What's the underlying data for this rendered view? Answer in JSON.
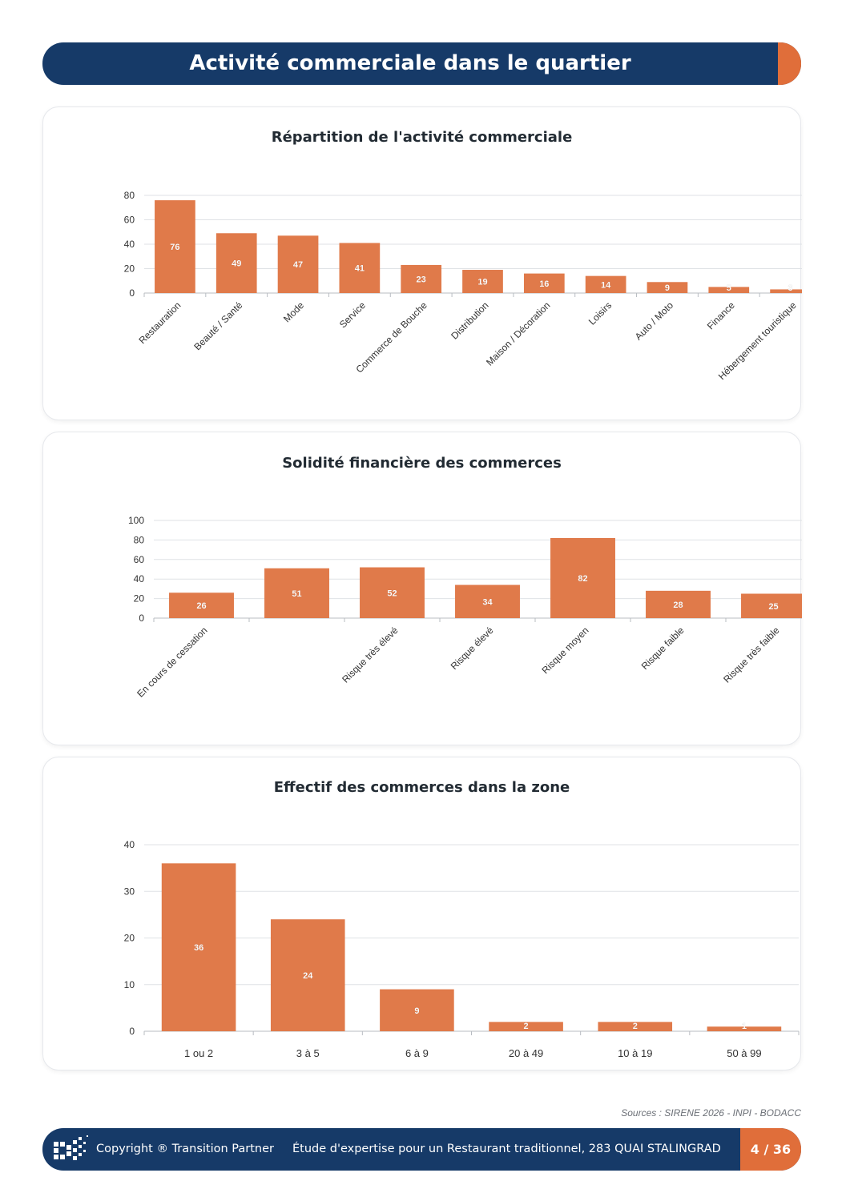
{
  "header": {
    "title": "Activité commerciale dans le quartier"
  },
  "colors": {
    "navy": "#163a68",
    "accent": "#e06e3a",
    "bar": "#e07a4a"
  },
  "chart_data": [
    {
      "type": "bar",
      "title": "Répartition de l'activité commerciale",
      "categories": [
        "Restauration",
        "Beauté / Santé",
        "Mode",
        "Service",
        "Commerce de Bouche",
        "Distribution",
        "Maison / Décoration",
        "Loisirs",
        "Auto / Moto",
        "Finance",
        "Hébergement touristique"
      ],
      "values": [
        76,
        49,
        47,
        41,
        23,
        19,
        16,
        14,
        9,
        5,
        3
      ],
      "yticks": [
        0,
        20,
        40,
        60,
        80
      ],
      "ylim": [
        0,
        80
      ],
      "xlabel": "",
      "ylabel": "",
      "grid": true,
      "labels_rotated": true
    },
    {
      "type": "bar",
      "title": "Solidité financière des commerces",
      "categories": [
        "En cours de cessation",
        "",
        "Risque très élevé",
        "Risque élevé",
        "Risque moyen",
        "Risque faible",
        "Risque très faible"
      ],
      "values": [
        26,
        51,
        52,
        34,
        82,
        28,
        25
      ],
      "yticks": [
        0,
        20,
        40,
        60,
        80,
        100
      ],
      "ylim": [
        0,
        100
      ],
      "xlabel": "",
      "ylabel": "",
      "grid": true,
      "labels_rotated": true
    },
    {
      "type": "bar",
      "title": "Effectif des commerces dans la zone",
      "categories": [
        "1 ou 2",
        "3 à 5",
        "6 à 9",
        "20 à 49",
        "10 à 19",
        "50 à 99"
      ],
      "values": [
        36,
        24,
        9,
        2,
        2,
        1
      ],
      "yticks": [
        0,
        10,
        20,
        30,
        40
      ],
      "ylim": [
        0,
        40
      ],
      "xlabel": "",
      "ylabel": "",
      "grid": true,
      "labels_rotated": false
    }
  ],
  "sources": "Sources : SIRENE 2026 - INPI - BODACC",
  "footer": {
    "copyright": "Copyright ® Transition Partner",
    "study": "Étude d'expertise pour un Restaurant traditionnel, 283 QUAI STALINGRAD",
    "page": "4 / 36"
  }
}
